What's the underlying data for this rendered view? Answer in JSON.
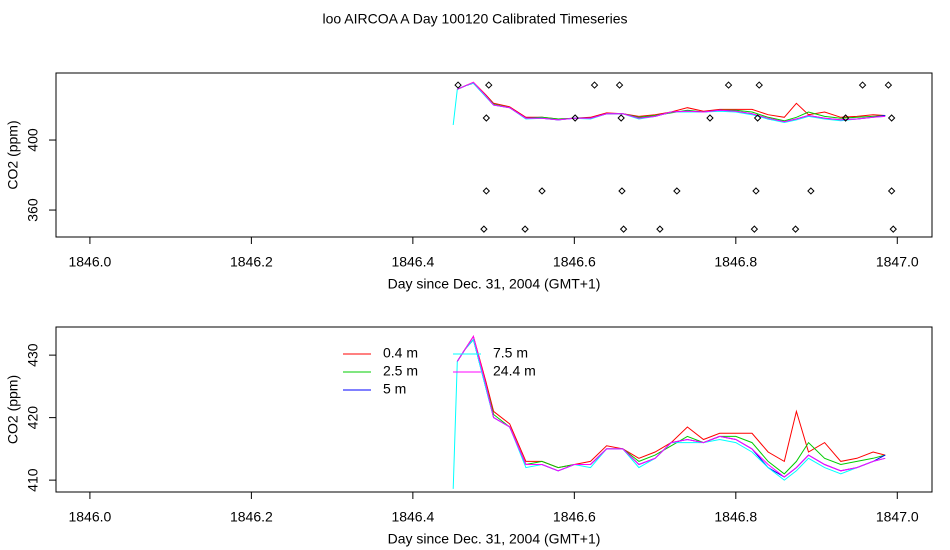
{
  "title": "loo AIRCOA A  Day 100120  Calibrated Timeseries",
  "chart_data": [
    {
      "type": "line",
      "xlabel": "Day since Dec. 31, 2004 (GMT+1)",
      "ylabel": "CO2 (ppm)",
      "xlim": [
        1845.958,
        1847.043
      ],
      "ylim": [
        344.6,
        438.3
      ],
      "xticks": [
        {
          "value": 1846,
          "label": "1846.0"
        },
        1846.2,
        1846.4,
        1846.6,
        1846.8,
        {
          "value": 1847,
          "label": "1847.0"
        }
      ],
      "yticks": [
        360,
        400
      ],
      "x": [
        1846.45,
        1846.455,
        1846.465,
        1846.475,
        1846.49,
        1846.5,
        1846.52,
        1846.54,
        1846.56,
        1846.58,
        1846.6,
        1846.62,
        1846.64,
        1846.66,
        1846.68,
        1846.7,
        1846.72,
        1846.74,
        1846.76,
        1846.78,
        1846.8,
        1846.82,
        1846.84,
        1846.86,
        1846.875,
        1846.89,
        1846.91,
        1846.93,
        1846.95,
        1846.97,
        1846.985
      ],
      "series": [
        {
          "color": "#ff0000",
          "values": [
            null,
            429,
            431,
            433,
            426,
            421,
            419,
            413,
            413,
            412,
            412.5,
            413,
            415.5,
            415,
            413.5,
            414.5,
            416,
            418.5,
            416.5,
            417.5,
            417.5,
            417.5,
            414.5,
            413,
            421,
            414.5,
            416,
            413,
            413.5,
            414.5,
            414
          ]
        },
        {
          "color": "#00cc00",
          "values": [
            null,
            429,
            431,
            432.5,
            425.5,
            420.5,
            418.5,
            412.5,
            413,
            412,
            412.5,
            412.5,
            415,
            415,
            413,
            414,
            415.5,
            417,
            416,
            417,
            417,
            416,
            413,
            411,
            413,
            416,
            413.5,
            412.5,
            413,
            413.5,
            414
          ]
        },
        {
          "color": "#0000ff",
          "values": [
            null,
            429,
            431,
            432.5,
            425,
            420,
            418.5,
            412.5,
            412.5,
            411.5,
            412.5,
            412.5,
            415,
            415,
            412.5,
            413.5,
            416,
            416.5,
            416,
            417,
            416.5,
            415,
            412,
            410.5,
            412,
            414,
            412.5,
            411.5,
            412,
            413,
            414
          ]
        },
        {
          "color": "#00ffff",
          "values": [
            408.6,
            429,
            431,
            432.5,
            425,
            420,
            418.5,
            412,
            412.5,
            411.5,
            412.5,
            412,
            415,
            415,
            412,
            413.5,
            416,
            416,
            416,
            416.5,
            416,
            414.5,
            412,
            410,
            411.5,
            413.5,
            412,
            411,
            412,
            413,
            413.5
          ]
        },
        {
          "color": "#ff00ff",
          "values": [
            null,
            429,
            431,
            433,
            425.5,
            420,
            418.5,
            412.5,
            412.5,
            411.5,
            412.5,
            412.5,
            415,
            415,
            412.5,
            413.5,
            416,
            416.5,
            416,
            417,
            416.5,
            415,
            412.5,
            410.5,
            412,
            414,
            412.5,
            411.5,
            412,
            413,
            413.5
          ]
        }
      ],
      "points": {
        "x": [
          1846.456,
          1846.494,
          1846.625,
          1846.656,
          1846.791,
          1846.829,
          1846.957,
          1846.989,
          1846.491,
          1846.601,
          1846.658,
          1846.768,
          1846.827,
          1846.936,
          1846.993,
          1846.491,
          1846.56,
          1846.659,
          1846.727,
          1846.825,
          1846.893,
          1846.993,
          1846.488,
          1846.539,
          1846.661,
          1846.706,
          1846.823,
          1846.874,
          1846.995
        ],
        "values": [
          431.4,
          431.4,
          431.4,
          431.4,
          431.4,
          431.4,
          431.4,
          431.4,
          412.6,
          412.6,
          412.6,
          412.6,
          412.6,
          412.6,
          412.6,
          370.9,
          370.9,
          370.9,
          370.9,
          370.9,
          370.9,
          370.9,
          349.1,
          349.1,
          349.1,
          349.1,
          349.1,
          349.1,
          349.1
        ]
      }
    },
    {
      "type": "line",
      "xlabel": "Day since Dec. 31, 2004 (GMT+1)",
      "ylabel": "CO2 (ppm)",
      "xlim": [
        1845.958,
        1847.043
      ],
      "ylim": [
        408.1,
        434.5
      ],
      "xticks": [
        {
          "value": 1846,
          "label": "1846.0"
        },
        1846.2,
        1846.4,
        1846.6,
        1846.8,
        {
          "value": 1847,
          "label": "1847.0"
        }
      ],
      "yticks": [
        410,
        420,
        430
      ],
      "legend_columns": 2,
      "x": [
        1846.45,
        1846.455,
        1846.465,
        1846.475,
        1846.49,
        1846.5,
        1846.52,
        1846.54,
        1846.56,
        1846.58,
        1846.6,
        1846.62,
        1846.64,
        1846.66,
        1846.68,
        1846.7,
        1846.72,
        1846.74,
        1846.76,
        1846.78,
        1846.8,
        1846.82,
        1846.84,
        1846.86,
        1846.875,
        1846.89,
        1846.91,
        1846.93,
        1846.95,
        1846.97,
        1846.985
      ],
      "series": [
        {
          "name": "0.4 m",
          "color": "#ff0000",
          "values": [
            null,
            429,
            431,
            433,
            426,
            421,
            419,
            413,
            413,
            412,
            412.5,
            413,
            415.5,
            415,
            413.5,
            414.5,
            416,
            418.5,
            416.5,
            417.5,
            417.5,
            417.5,
            414.5,
            413,
            421,
            414.5,
            416,
            413,
            413.5,
            414.5,
            414
          ]
        },
        {
          "name": "2.5 m",
          "color": "#00cc00",
          "values": [
            null,
            429,
            431,
            432.5,
            425.5,
            420.5,
            418.5,
            412.5,
            413,
            412,
            412.5,
            412.5,
            415,
            415,
            413,
            414,
            415.5,
            417,
            416,
            417,
            417,
            416,
            413,
            411,
            413,
            416,
            413.5,
            412.5,
            413,
            413.5,
            414
          ]
        },
        {
          "name": "5 m",
          "color": "#0000ff",
          "values": [
            null,
            429,
            431,
            432.5,
            425,
            420,
            418.5,
            412.5,
            412.5,
            411.5,
            412.5,
            412.5,
            415,
            415,
            412.5,
            413.5,
            416,
            416.5,
            416,
            417,
            416.5,
            415,
            412,
            410.5,
            412,
            414,
            412.5,
            411.5,
            412,
            413,
            414
          ]
        },
        {
          "name": "7.5 m",
          "color": "#00ffff",
          "values": [
            408.6,
            429,
            431,
            432.5,
            425,
            420,
            418.5,
            412,
            412.5,
            411.5,
            412.5,
            412,
            415,
            415,
            412,
            413.5,
            416,
            416,
            416,
            416.5,
            416,
            414.5,
            412,
            410,
            411.5,
            413.5,
            412,
            411,
            412,
            413,
            413.5
          ]
        },
        {
          "name": "24.4 m",
          "color": "#ff00ff",
          "values": [
            null,
            429,
            431,
            433,
            425.5,
            420,
            418.5,
            412.5,
            412.5,
            411.5,
            412.5,
            412.5,
            415,
            415,
            412.5,
            413.5,
            416,
            416.5,
            416,
            417,
            416.5,
            415,
            412.5,
            410.5,
            412,
            414,
            412.5,
            411.5,
            412,
            413,
            413.5
          ]
        }
      ]
    }
  ]
}
